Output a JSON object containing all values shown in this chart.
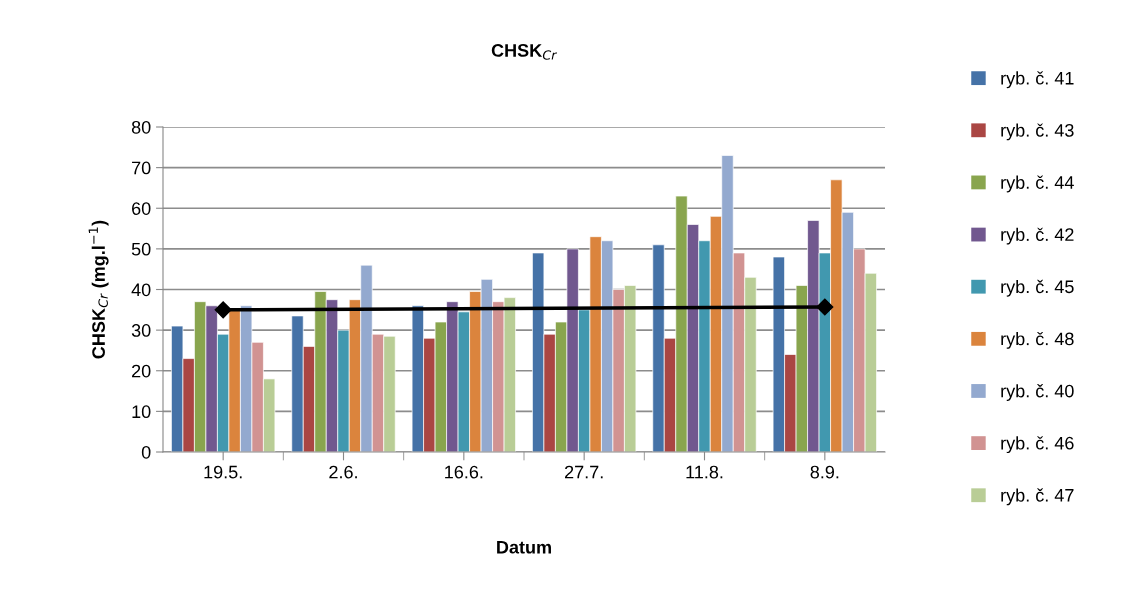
{
  "chart_data": {
    "type": "bar",
    "title": "CHSK$_{Cr}$",
    "xlabel": "Datum",
    "ylabel": "CHSK$_{Cr}$ (mg.l$^{−1}$)",
    "categories": [
      "19.5.",
      "2.6.",
      "16.6.",
      "27.7.",
      "11.8.",
      "8.9."
    ],
    "series": [
      {
        "name": "ryb. č. 41",
        "color": "#4572a7",
        "values": [
          31,
          33.5,
          36,
          49,
          51,
          48
        ]
      },
      {
        "name": "ryb. č. 43",
        "color": "#aa4643",
        "values": [
          23,
          26,
          28,
          29,
          28,
          24
        ]
      },
      {
        "name": "ryb. č. 44",
        "color": "#89a54e",
        "values": [
          37,
          39.5,
          32,
          32,
          63,
          41
        ]
      },
      {
        "name": "ryb. č. 42",
        "color": "#71588f",
        "values": [
          36,
          37.5,
          37,
          50,
          56,
          57
        ]
      },
      {
        "name": "ryb. č. 45",
        "color": "#4198af",
        "values": [
          29,
          30,
          34.5,
          35,
          52,
          49
        ]
      },
      {
        "name": "ryb. č. 48",
        "color": "#db843d",
        "values": [
          35,
          37.5,
          39.5,
          53,
          58,
          67
        ]
      },
      {
        "name": "ryb. č. 40",
        "color": "#93a9cf",
        "values": [
          36,
          46,
          42.5,
          52,
          73,
          59
        ]
      },
      {
        "name": "ryb. č. 46",
        "color": "#d19392",
        "values": [
          27,
          29,
          37,
          40,
          49,
          50
        ]
      },
      {
        "name": "ryb. č. 47",
        "color": "#b9cd96",
        "values": [
          18,
          28.5,
          38,
          41,
          43,
          44
        ]
      },
      {
        "type": "line",
        "color": "#000000",
        "values": [
          35,
          null,
          null,
          null,
          null,
          35.7
        ],
        "marker": "diamond",
        "line_style": "solid"
      }
    ],
    "ylim": [
      0,
      80
    ],
    "yticks": [
      0,
      10,
      20,
      30,
      40,
      50,
      60,
      70,
      80
    ],
    "grid": "y",
    "legend": "right"
  }
}
